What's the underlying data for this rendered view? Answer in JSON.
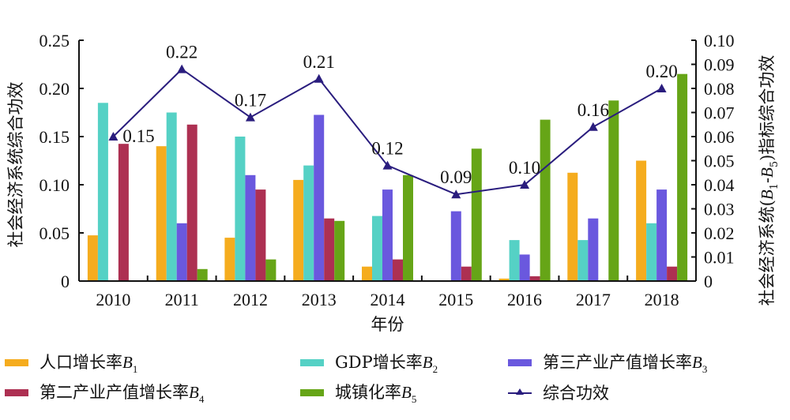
{
  "chart_data": {
    "type": "bar+line",
    "title": "",
    "xlabel": "年份",
    "ylabel_left": "社会经济系统综合功效",
    "ylabel_right": "社会经济系统(B1-B5)指标综合功效",
    "ylabel_right_parts": {
      "prefix": "社会经济系统(",
      "b1": "B",
      "sub1": "1",
      "dash": "-",
      "b5": "B",
      "sub5": "5",
      "suffix": ")指标综合功效"
    },
    "categories": [
      "2010",
      "2011",
      "2012",
      "2013",
      "2014",
      "2015",
      "2016",
      "2017",
      "2018"
    ],
    "y_left": {
      "range": [
        0,
        0.25
      ],
      "ticks": [
        "0",
        "0.05",
        "0.10",
        "0.15",
        "0.20",
        "0.25"
      ],
      "tick_values": [
        0,
        0.05,
        0.1,
        0.15,
        0.2,
        0.25
      ]
    },
    "y_right": {
      "range": [
        0,
        0.1
      ],
      "ticks": [
        "0",
        "0.01",
        "0.02",
        "0.03",
        "0.04",
        "0.05",
        "0.06",
        "0.07",
        "0.08",
        "0.09",
        "0.10"
      ],
      "tick_values": [
        0,
        0.01,
        0.02,
        0.03,
        0.04,
        0.05,
        0.06,
        0.07,
        0.08,
        0.09,
        0.1
      ]
    },
    "grid": false,
    "legend_position": "bottom",
    "bar_series": [
      {
        "name": "人口增长率B1",
        "label": "人口增长率",
        "sym": "B",
        "sub": "1",
        "color": "#F5AC1E",
        "axis": "right",
        "values": [
          0.019,
          0.056,
          0.018,
          0.042,
          0.006,
          0.0,
          0.001,
          0.045,
          0.05
        ]
      },
      {
        "name": "GDP增长率B2",
        "label": "GDP增长率",
        "sym": "B",
        "sub": "2",
        "color": "#55D1C5",
        "axis": "right",
        "values": [
          0.074,
          0.07,
          0.06,
          0.048,
          0.027,
          0.0,
          0.017,
          0.017,
          0.024
        ]
      },
      {
        "name": "第三产业产值增长率B3",
        "label": "第三产业产值增长率",
        "sym": "B",
        "sub": "3",
        "color": "#6A58DE",
        "axis": "right",
        "values": [
          0.0,
          0.024,
          0.044,
          0.069,
          0.038,
          0.029,
          0.011,
          0.026,
          0.038
        ]
      },
      {
        "name": "第二产业产值增长率B4",
        "label": "第二产业产值增长率",
        "sym": "B",
        "sub": "4",
        "color": "#AD3052",
        "axis": "right",
        "values": [
          0.057,
          0.065,
          0.038,
          0.026,
          0.009,
          0.006,
          0.002,
          0.0,
          0.006
        ]
      },
      {
        "name": "城镇化率B5",
        "label": "城镇化率",
        "sym": "B",
        "sub": "5",
        "color": "#66A517",
        "axis": "right",
        "values": [
          0.0,
          0.005,
          0.009,
          0.025,
          0.044,
          0.055,
          0.067,
          0.075,
          0.086
        ]
      }
    ],
    "line_series": {
      "name": "综合功效",
      "color": "#2A1D7E",
      "axis": "left",
      "marker": "triangle",
      "values": [
        0.15,
        0.22,
        0.17,
        0.21,
        0.12,
        0.09,
        0.1,
        0.16,
        0.2
      ],
      "data_labels": [
        "0.15",
        "0.22",
        "0.17",
        "0.21",
        "0.12",
        "0.09",
        "0.10",
        "0.16",
        "0.20"
      ]
    }
  }
}
